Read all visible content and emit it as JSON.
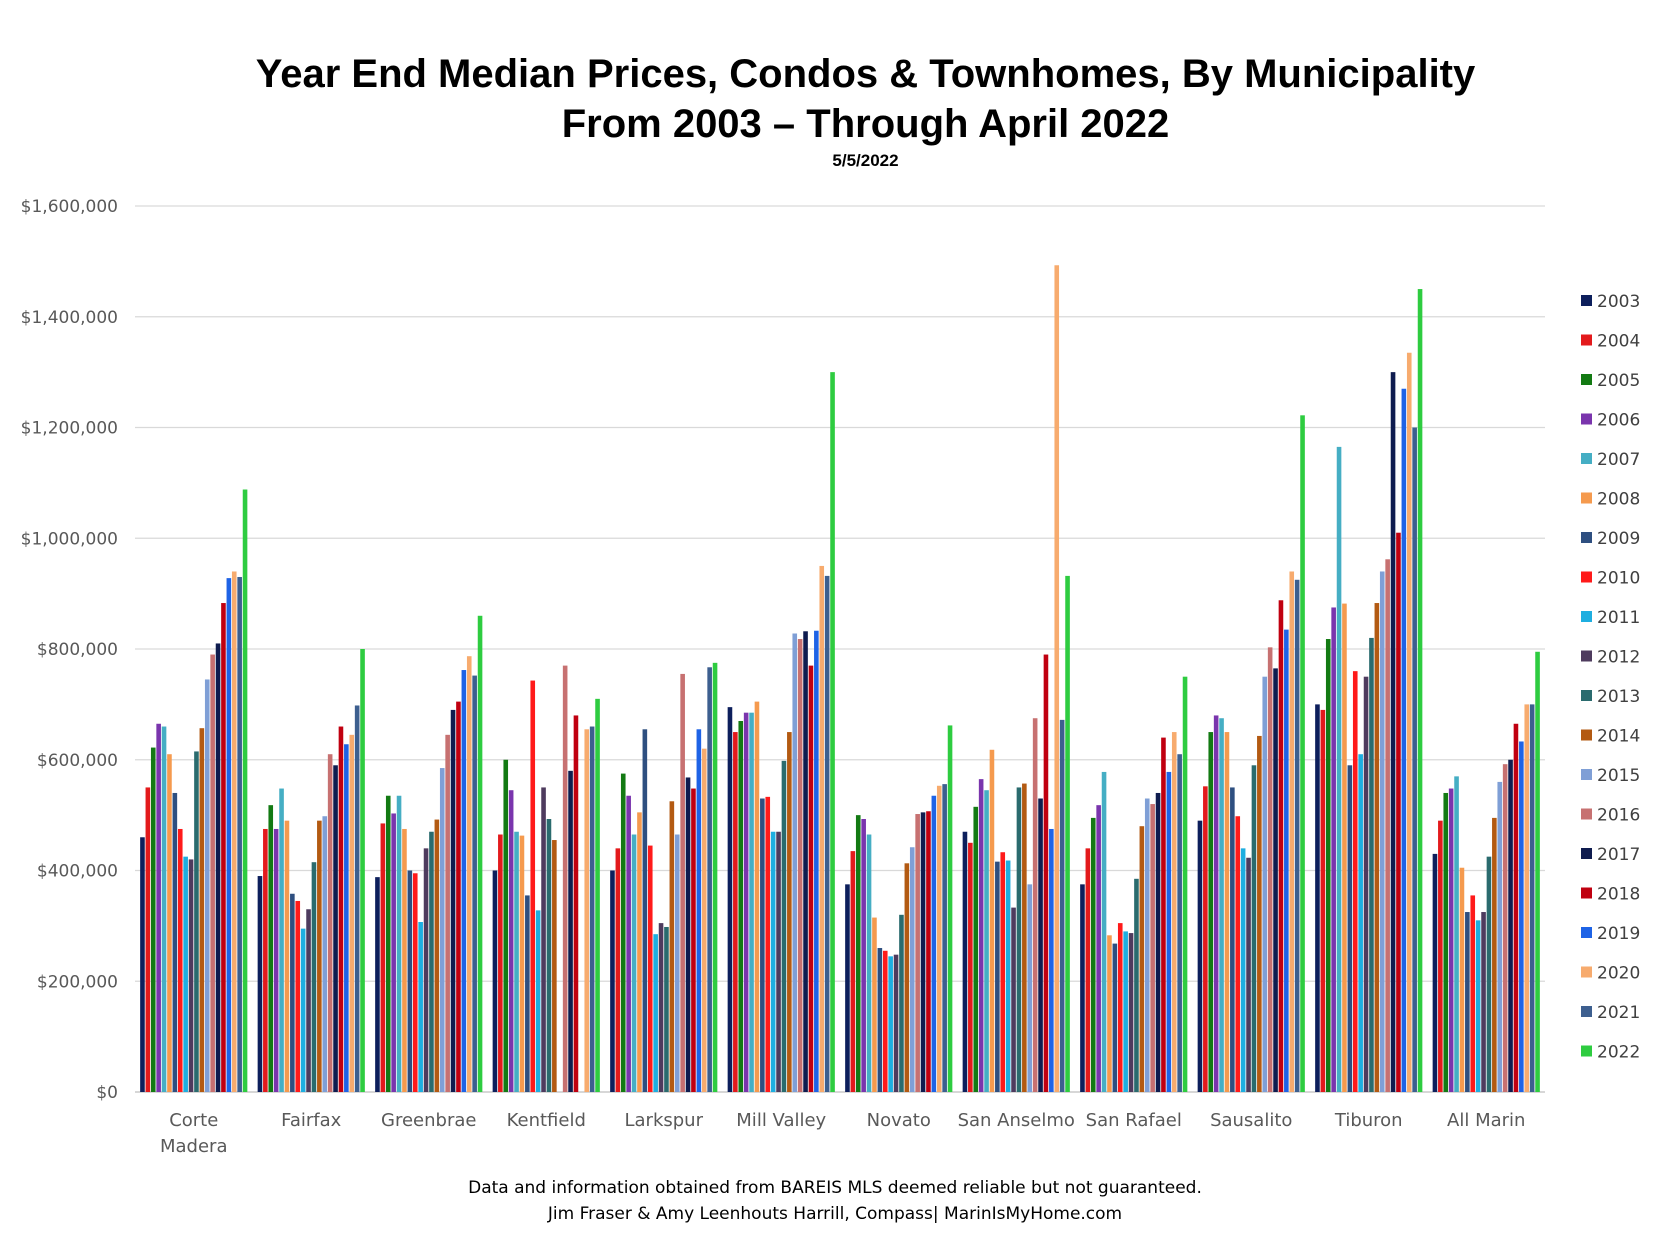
{
  "title_line1": "Year End Median Prices, Condos & Townhomes, By Municipality",
  "title_line2": "From 2003 – Through April 2022",
  "date": "5/5/2022",
  "footer_line1": "Data and information obtained from BAREIS MLS deemed reliable but not guaranteed.",
  "footer_line2": "Jim Fraser & Amy Leenhouts Harrill, Compass| MarinIsMyHome.com",
  "chart_data": {
    "type": "bar",
    "title": "Year End Median Prices, Condos & Townhomes, By Municipality",
    "ylim": [
      0,
      1600000
    ],
    "yticks": [
      0,
      200000,
      400000,
      600000,
      800000,
      1000000,
      1200000,
      1400000,
      1600000
    ],
    "ytick_labels": [
      "$0",
      "$200,000",
      "$400,000",
      "$600,000",
      "$800,000",
      "$1,000,000",
      "$1,200,000",
      "$1,400,000",
      "$1,600,000"
    ],
    "grid": true,
    "legend_position": "right",
    "categories": [
      [
        "Corte",
        "Madera"
      ],
      [
        "Fairfax"
      ],
      [
        "Greenbrae"
      ],
      [
        "Kentfield"
      ],
      [
        "Larkspur"
      ],
      [
        "Mill Valley"
      ],
      [
        "Novato"
      ],
      [
        "San Anselmo"
      ],
      [
        "San Rafael"
      ],
      [
        "Sausalito"
      ],
      [
        "Tiburon"
      ],
      [
        "All Marin"
      ]
    ],
    "series": [
      {
        "name": "2003",
        "color": "#0d1f5c",
        "values": [
          460000,
          390000,
          388000,
          400000,
          400000,
          695000,
          375000,
          470000,
          375000,
          490000,
          700000,
          430000
        ]
      },
      {
        "name": "2004",
        "color": "#e31a1c",
        "values": [
          550000,
          475000,
          485000,
          465000,
          440000,
          650000,
          435000,
          450000,
          440000,
          552000,
          690000,
          490000
        ]
      },
      {
        "name": "2005",
        "color": "#137a13",
        "values": [
          622000,
          518000,
          535000,
          600000,
          575000,
          670000,
          500000,
          515000,
          495000,
          650000,
          818000,
          540000
        ]
      },
      {
        "name": "2006",
        "color": "#7a35ad",
        "values": [
          665000,
          475000,
          503000,
          545000,
          535000,
          685000,
          493000,
          565000,
          518000,
          680000,
          875000,
          548000
        ]
      },
      {
        "name": "2007",
        "color": "#45aec4",
        "values": [
          660000,
          548000,
          535000,
          470000,
          465000,
          685000,
          465000,
          545000,
          578000,
          675000,
          1165000,
          570000
        ]
      },
      {
        "name": "2008",
        "color": "#f59a4e",
        "values": [
          610000,
          490000,
          475000,
          463000,
          505000,
          705000,
          315000,
          618000,
          283000,
          650000,
          882000,
          405000
        ]
      },
      {
        "name": "2009",
        "color": "#2e4f80",
        "values": [
          540000,
          358000,
          400000,
          355000,
          655000,
          530000,
          260000,
          416000,
          268000,
          550000,
          590000,
          325000
        ]
      },
      {
        "name": "2010",
        "color": "#ff1a1a",
        "values": [
          475000,
          345000,
          395000,
          743000,
          445000,
          533000,
          255000,
          433000,
          305000,
          498000,
          760000,
          355000
        ]
      },
      {
        "name": "2011",
        "color": "#1eaee0",
        "values": [
          425000,
          295000,
          307000,
          328000,
          285000,
          470000,
          245000,
          418000,
          290000,
          440000,
          610000,
          310000
        ]
      },
      {
        "name": "2012",
        "color": "#4e3b5e",
        "values": [
          420000,
          330000,
          440000,
          550000,
          305000,
          470000,
          248000,
          333000,
          287000,
          423000,
          750000,
          325000
        ]
      },
      {
        "name": "2013",
        "color": "#2a6b6e",
        "values": [
          615000,
          415000,
          470000,
          493000,
          298000,
          598000,
          320000,
          550000,
          385000,
          590000,
          820000,
          425000
        ]
      },
      {
        "name": "2014",
        "color": "#b35a12",
        "values": [
          657000,
          490000,
          492000,
          455000,
          525000,
          650000,
          413000,
          557000,
          480000,
          643000,
          883000,
          495000
        ]
      },
      {
        "name": "2015",
        "color": "#7f9fd6",
        "values": [
          745000,
          498000,
          585000,
          0,
          465000,
          828000,
          442000,
          375000,
          530000,
          750000,
          940000,
          560000
        ]
      },
      {
        "name": "2016",
        "color": "#c77171",
        "values": [
          790000,
          610000,
          645000,
          770000,
          755000,
          818000,
          502000,
          675000,
          520000,
          803000,
          962000,
          592000
        ]
      },
      {
        "name": "2017",
        "color": "#0f1c4f",
        "values": [
          810000,
          590000,
          690000,
          580000,
          568000,
          832000,
          505000,
          530000,
          540000,
          765000,
          1300000,
          600000
        ]
      },
      {
        "name": "2018",
        "color": "#c00010",
        "values": [
          883000,
          660000,
          705000,
          680000,
          548000,
          770000,
          507000,
          790000,
          640000,
          888000,
          1010000,
          665000
        ]
      },
      {
        "name": "2019",
        "color": "#1e63e6",
        "values": [
          928000,
          628000,
          762000,
          0,
          655000,
          833000,
          535000,
          475000,
          578000,
          835000,
          1270000,
          633000
        ]
      },
      {
        "name": "2020",
        "color": "#f7ab6e",
        "values": [
          940000,
          645000,
          787000,
          655000,
          620000,
          950000,
          553000,
          1493000,
          650000,
          940000,
          1335000,
          700000
        ]
      },
      {
        "name": "2021",
        "color": "#3d5f8f",
        "values": [
          930000,
          698000,
          752000,
          660000,
          767000,
          932000,
          556000,
          672000,
          610000,
          925000,
          1200000,
          700000
        ]
      },
      {
        "name": "2022",
        "color": "#2ecc40",
        "values": [
          1088000,
          800000,
          860000,
          710000,
          775000,
          1300000,
          662000,
          932000,
          750000,
          1222000,
          1450000,
          795000
        ]
      }
    ]
  }
}
